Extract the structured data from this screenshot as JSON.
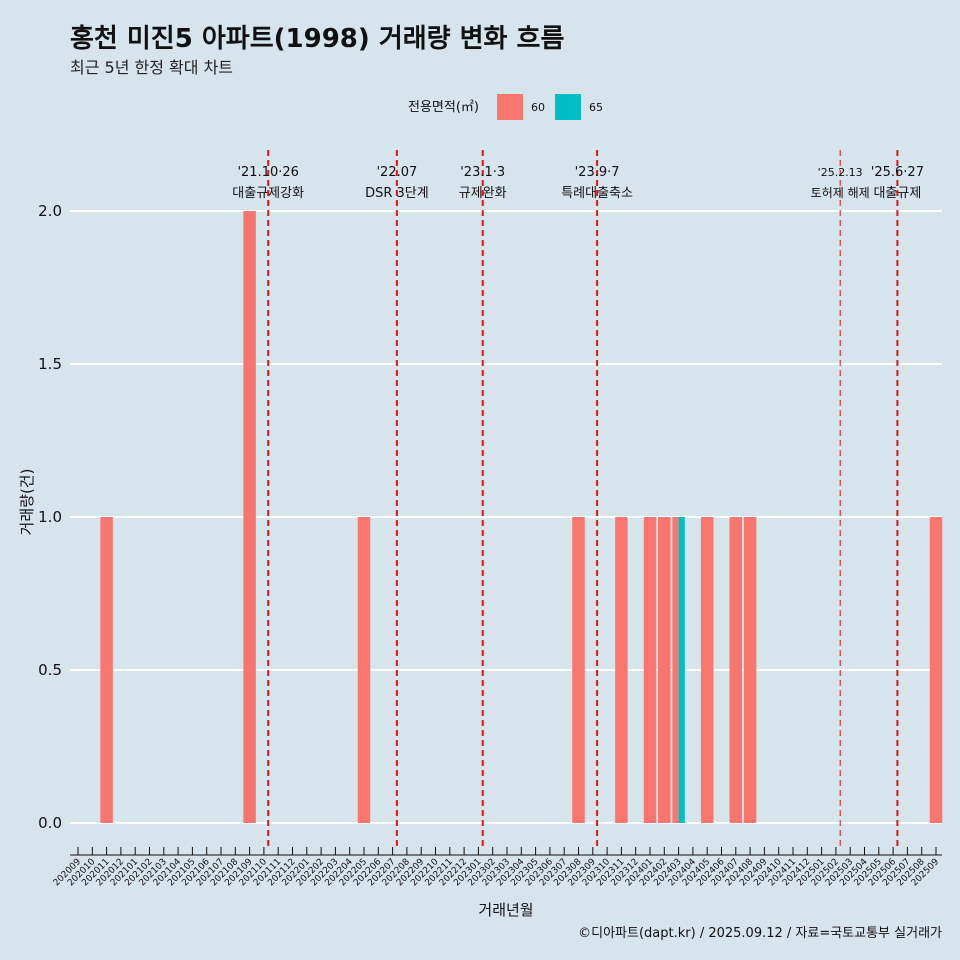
{
  "title": "홍천 미진5 아파트(1998) 거래량 변화 흐름",
  "subtitle": "최근 5년 한정 확대 차트",
  "caption": "©디아파트(dapt.kr) / 2025.09.12 / 자료=국토교통부 실거래가",
  "colors": {
    "s60": "#f8766d",
    "s65": "#00bfc4",
    "event": "#ee1111",
    "grid": "#ffffff"
  },
  "chart_data": {
    "type": "bar",
    "title": "홍천 미진5 아파트(1998) 거래량 변화 흐름",
    "xlabel": "거래년월",
    "ylabel": "거래량(건)",
    "ylim": [
      0,
      2
    ],
    "yticks": [
      "0.0",
      "0.5",
      "1.0",
      "1.5",
      "2.0"
    ],
    "legend": {
      "title": "전용면적(㎡)",
      "position": "top",
      "entries": [
        "60",
        "65"
      ]
    },
    "categories": [
      "202009",
      "202010",
      "202011",
      "202012",
      "202101",
      "202102",
      "202103",
      "202104",
      "202105",
      "202106",
      "202107",
      "202108",
      "202109",
      "202110",
      "202111",
      "202112",
      "202201",
      "202202",
      "202203",
      "202204",
      "202205",
      "202206",
      "202207",
      "202208",
      "202209",
      "202210",
      "202211",
      "202212",
      "202301",
      "202302",
      "202303",
      "202304",
      "202305",
      "202306",
      "202307",
      "202308",
      "202309",
      "202310",
      "202311",
      "202312",
      "202401",
      "202402",
      "202403",
      "202404",
      "202405",
      "202406",
      "202407",
      "202408",
      "202409",
      "202410",
      "202411",
      "202412",
      "202501",
      "202502",
      "202503",
      "202504",
      "202505",
      "202506",
      "202507",
      "202508",
      "202509"
    ],
    "bars": [
      {
        "month": "202011",
        "area": "60",
        "count": 1
      },
      {
        "month": "202109",
        "area": "60",
        "count": 2
      },
      {
        "month": "202205",
        "area": "60",
        "count": 1
      },
      {
        "month": "202308",
        "area": "60",
        "count": 1
      },
      {
        "month": "202311",
        "area": "60",
        "count": 1
      },
      {
        "month": "202401",
        "area": "60",
        "count": 1
      },
      {
        "month": "202402",
        "area": "60",
        "count": 1
      },
      {
        "month": "202403",
        "area": "60",
        "count": 1
      },
      {
        "month": "202403",
        "area": "65",
        "count": 1
      },
      {
        "month": "202405",
        "area": "60",
        "count": 1
      },
      {
        "month": "202407",
        "area": "60",
        "count": 1
      },
      {
        "month": "202408",
        "area": "60",
        "count": 1
      },
      {
        "month": "202509",
        "area": "60",
        "count": 1
      }
    ],
    "events": [
      {
        "date": "'21.10·26",
        "label": "대출규제강화",
        "pos": 13.3
      },
      {
        "date": "'22.07",
        "label": "DSR 3단계",
        "pos": 22.3
      },
      {
        "date": "'23.1·3",
        "label": "규제완화",
        "pos": 28.3
      },
      {
        "date": "'23.9·7",
        "label": "특례대출축소",
        "pos": 36.3
      },
      {
        "date": "'25.2.13",
        "label": "토허제 해제",
        "pos": 53.3
      },
      {
        "date": "'25.6·27",
        "label": "대출규제",
        "pos": 57.3
      }
    ]
  }
}
